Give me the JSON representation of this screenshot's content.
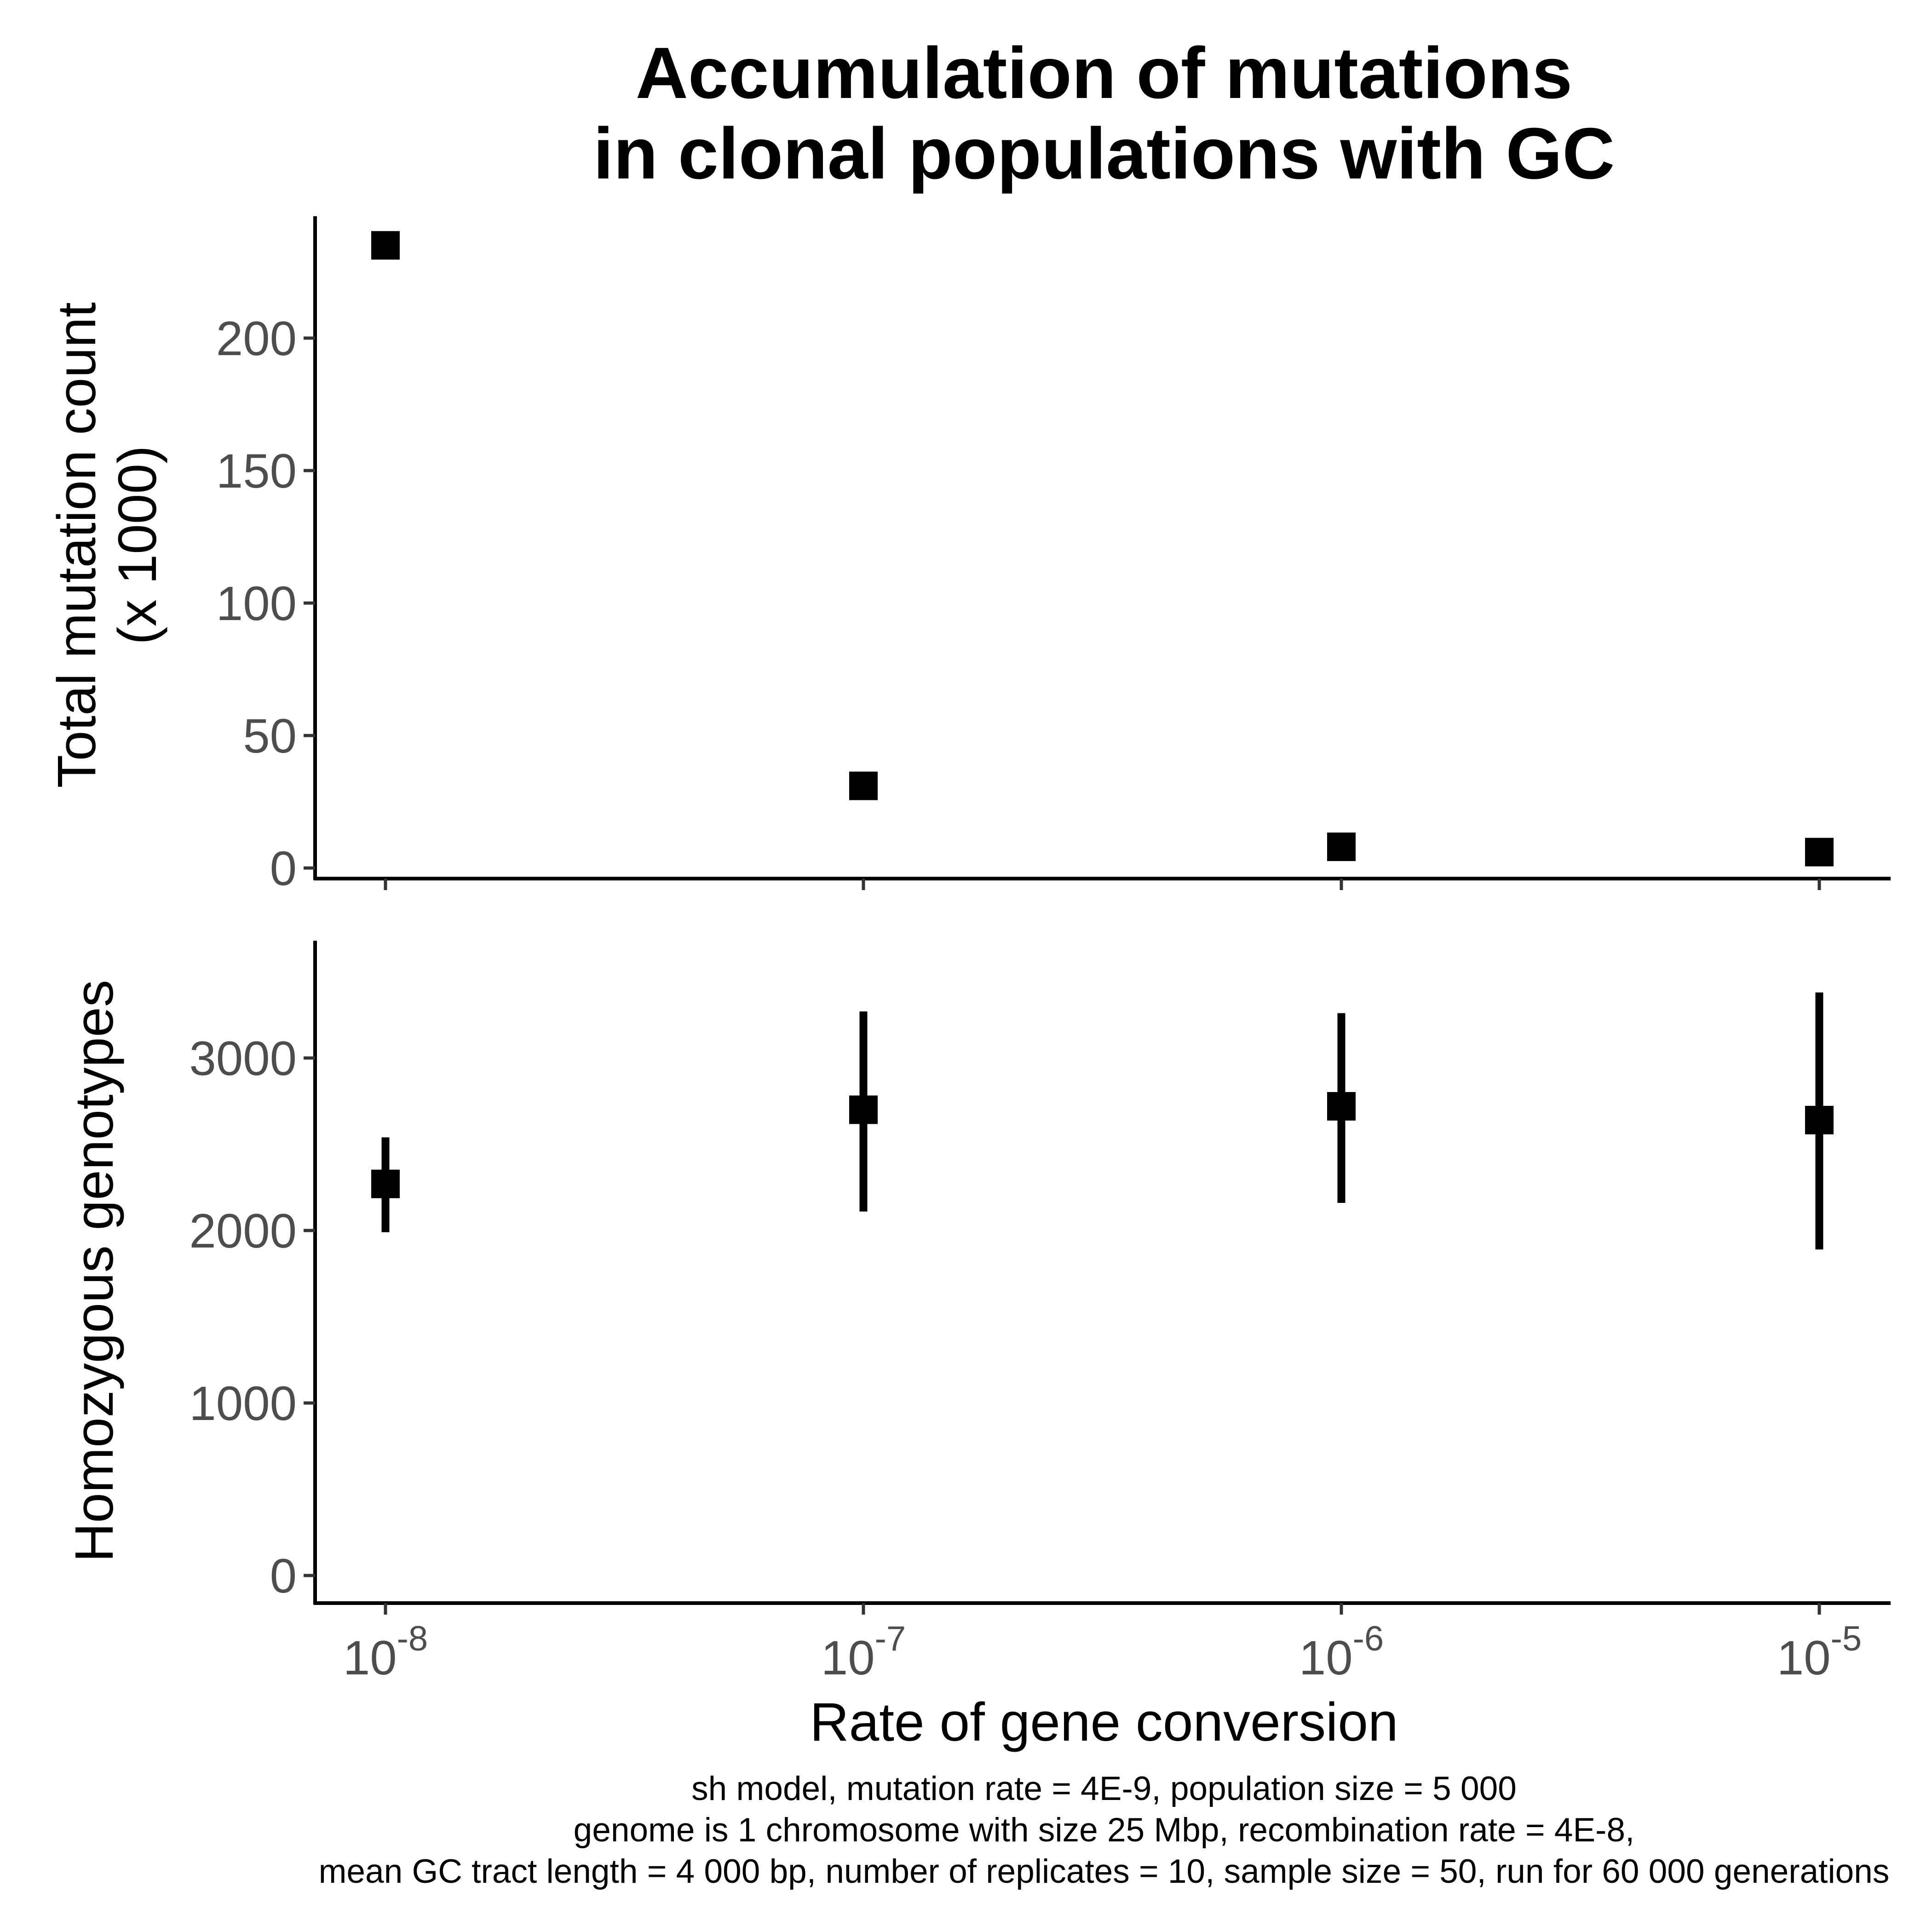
{
  "title_lines": [
    "Accumulation of mutations",
    "in clonal populations with GC"
  ],
  "caption_lines": [
    "sh model, mutation rate = 4E-9, population size = 5 000",
    "genome is 1 chromosome with size 25 Mbp, recombination rate = 4E-8,",
    "mean GC tract length = 4 000 bp, number of replicates = 10, sample size = 50, run for 60 000 generations"
  ],
  "chart_data": [
    {
      "type": "scatter",
      "title": "",
      "xlabel": "Rate of gene conversion",
      "ylabel_lines": [
        "Total mutation count",
        "(x 1000)"
      ],
      "x_scale": "log10",
      "x": [
        1e-08,
        1e-07,
        1e-06,
        1e-05
      ],
      "x_tick_labels": [
        {
          "base": "10",
          "exp": "-8"
        },
        {
          "base": "10",
          "exp": "-7"
        },
        {
          "base": "10",
          "exp": "-6"
        },
        {
          "base": "10",
          "exp": "-5"
        }
      ],
      "y": [
        235,
        31,
        8,
        6
      ],
      "y_ticks": [
        0,
        50,
        100,
        150,
        200
      ],
      "ylim": [
        -4,
        246
      ],
      "marker": "square",
      "grid": false
    },
    {
      "type": "scatter",
      "title": "",
      "xlabel": "Rate of gene conversion",
      "ylabel_lines": [
        "Homozygous genotypes"
      ],
      "x_scale": "log10",
      "x": [
        1e-08,
        1e-07,
        1e-06,
        1e-05
      ],
      "y": [
        2270,
        2700,
        2720,
        2640
      ],
      "y_err_low": [
        1990,
        2110,
        2160,
        1890
      ],
      "y_err_high": [
        2540,
        3270,
        3260,
        3380
      ],
      "y_ticks": [
        0,
        1000,
        2000,
        3000
      ],
      "ylim": [
        -160,
        3680
      ],
      "marker": "square",
      "grid": false
    }
  ]
}
